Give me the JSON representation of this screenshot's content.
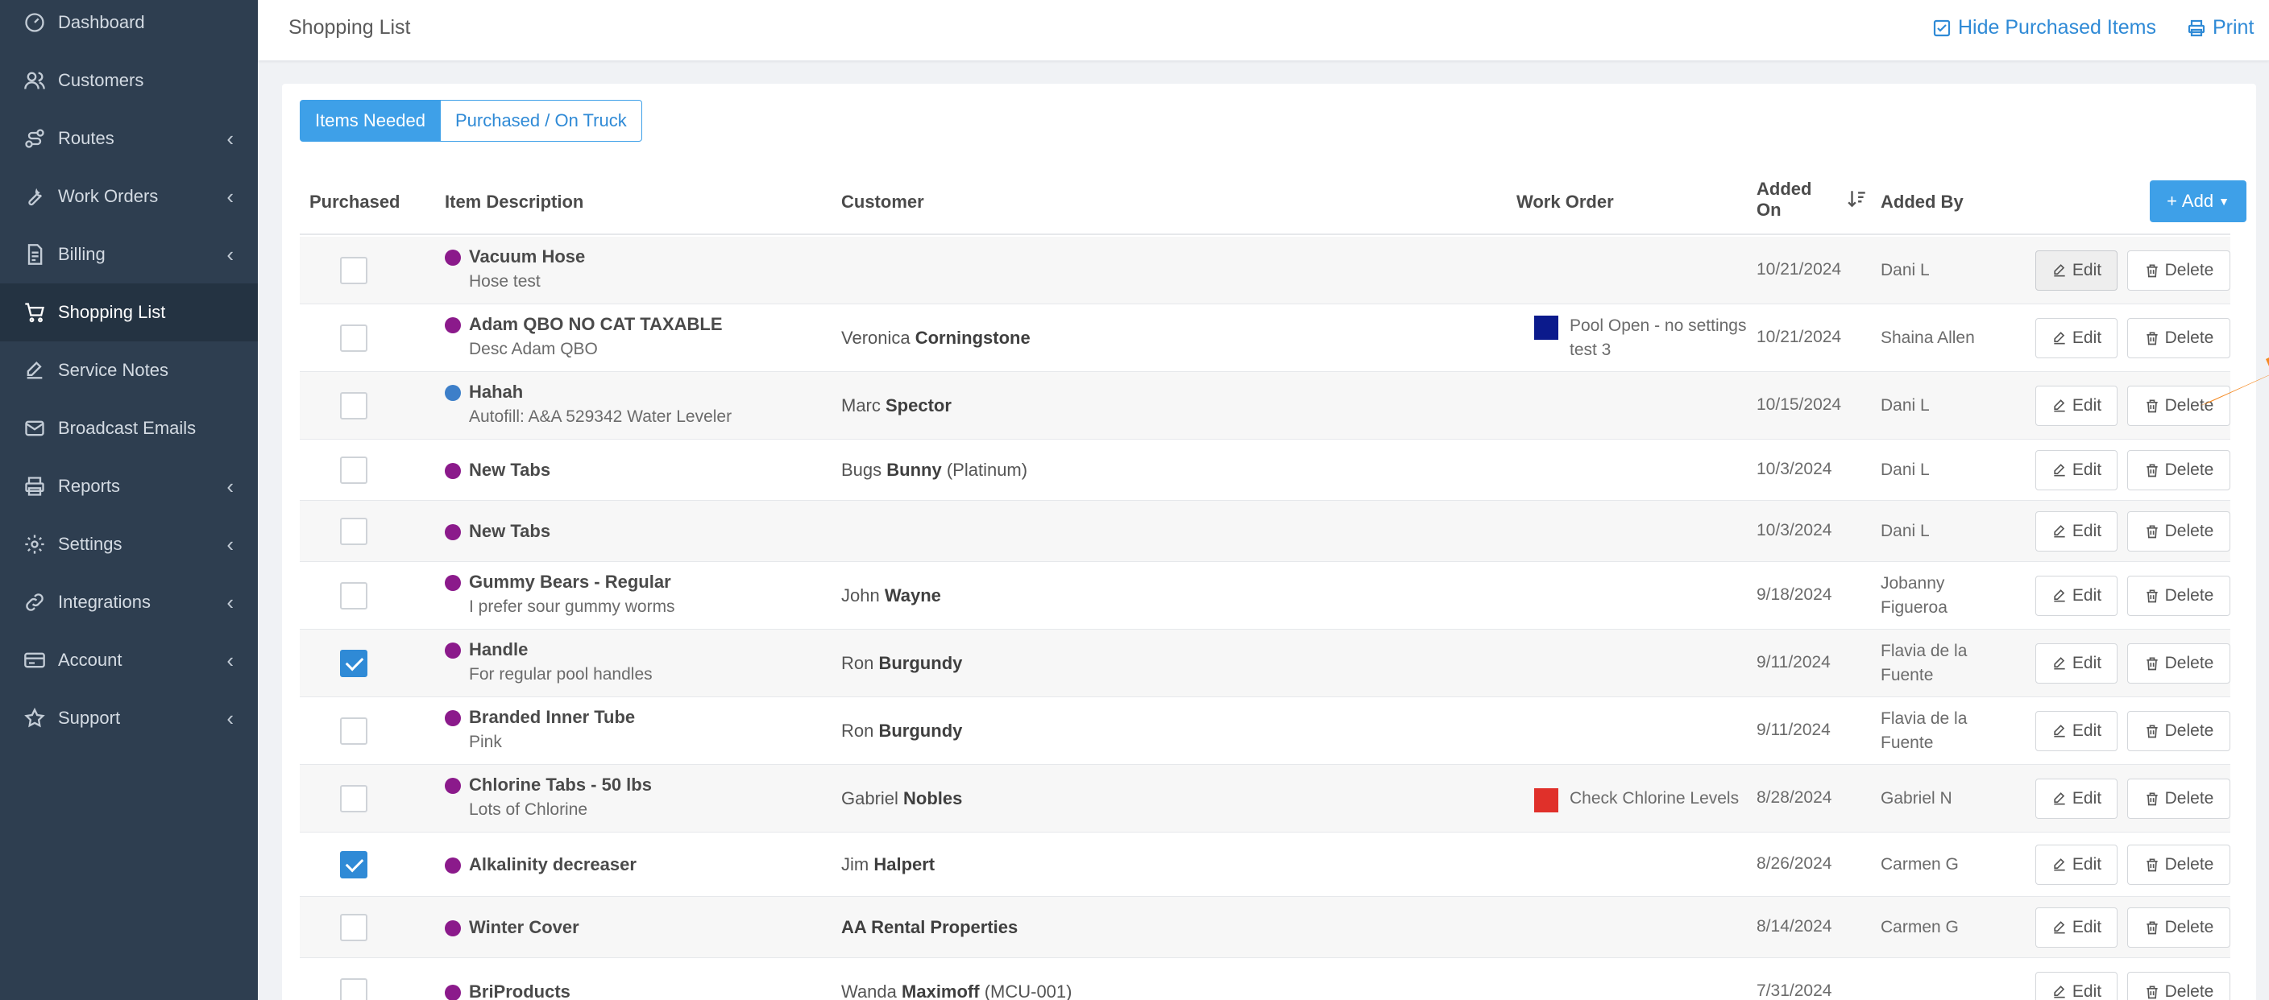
{
  "sidebar": {
    "items": [
      {
        "label": "Dashboard",
        "icon": "dashboard-icon",
        "chevron": false,
        "active": false
      },
      {
        "label": "Customers",
        "icon": "users-icon",
        "chevron": false,
        "active": false
      },
      {
        "label": "Routes",
        "icon": "route-icon",
        "chevron": true,
        "active": false
      },
      {
        "label": "Work Orders",
        "icon": "wrench-icon",
        "chevron": true,
        "active": false
      },
      {
        "label": "Billing",
        "icon": "invoice-icon",
        "chevron": true,
        "active": false
      },
      {
        "label": "Shopping List",
        "icon": "cart-icon",
        "chevron": false,
        "active": true
      },
      {
        "label": "Service Notes",
        "icon": "edit-icon",
        "chevron": false,
        "active": false
      },
      {
        "label": "Broadcast Emails",
        "icon": "envelope-icon",
        "chevron": false,
        "active": false
      },
      {
        "label": "Reports",
        "icon": "printer-icon",
        "chevron": true,
        "active": false
      },
      {
        "label": "Settings",
        "icon": "gear-icon",
        "chevron": true,
        "active": false
      },
      {
        "label": "Integrations",
        "icon": "link-icon",
        "chevron": true,
        "active": false
      },
      {
        "label": "Account",
        "icon": "card-icon",
        "chevron": true,
        "active": false
      },
      {
        "label": "Support",
        "icon": "star-icon",
        "chevron": true,
        "active": false
      }
    ],
    "chevron_glyph": "‹"
  },
  "header": {
    "title": "Shopping List",
    "hide_purchased": "Hide Purchased Items",
    "print": "Print"
  },
  "tabs": {
    "needed": "Items Needed",
    "purchased": "Purchased / On Truck"
  },
  "table": {
    "headers": {
      "purchased": "Purchased",
      "item": "Item Description",
      "customer": "Customer",
      "work_order": "Work Order",
      "added_on_1": "Added",
      "added_on_2": "On",
      "added_by": "Added By"
    },
    "add_label": "Add",
    "edit_label": "Edit",
    "delete_label": "Delete",
    "rows": [
      {
        "checked": false,
        "dot": "#8b1a8b",
        "name": "Vacuum Hose",
        "desc": "Hose test",
        "cust_first": "",
        "cust_last": "",
        "cust_extra": "",
        "wo_color": "",
        "wo_line1": "",
        "wo_line2": "",
        "date": "10/21/2024",
        "by1": "Dani L",
        "by2": ""
      },
      {
        "checked": false,
        "dot": "#8b1a8b",
        "name": "Adam QBO NO CAT TAXABLE",
        "desc": "Desc Adam QBO",
        "cust_first": "Veronica ",
        "cust_last": "Corningstone",
        "cust_extra": "",
        "wo_color": "#0b1a8c",
        "wo_line1": "Pool Open - no settings",
        "wo_line2": "test 3",
        "date": "10/21/2024",
        "by1": "Shaina Allen",
        "by2": ""
      },
      {
        "checked": false,
        "dot": "#3d7fc9",
        "name": "Hahah",
        "desc": "Autofill: A&A 529342 Water Leveler",
        "cust_first": "Marc ",
        "cust_last": "Spector",
        "cust_extra": "",
        "wo_color": "",
        "wo_line1": "",
        "wo_line2": "",
        "date": "10/15/2024",
        "by1": "Dani L",
        "by2": ""
      },
      {
        "checked": false,
        "dot": "#8b1a8b",
        "name": "New Tabs",
        "desc": "",
        "cust_first": "Bugs ",
        "cust_last": "Bunny",
        "cust_extra": " (Platinum)",
        "wo_color": "",
        "wo_line1": "",
        "wo_line2": "",
        "date": "10/3/2024",
        "by1": "Dani L",
        "by2": ""
      },
      {
        "checked": false,
        "dot": "#8b1a8b",
        "name": "New Tabs",
        "desc": "",
        "cust_first": "",
        "cust_last": "",
        "cust_extra": "",
        "wo_color": "",
        "wo_line1": "",
        "wo_line2": "",
        "date": "10/3/2024",
        "by1": "Dani L",
        "by2": ""
      },
      {
        "checked": false,
        "dot": "#8b1a8b",
        "name": "Gummy Bears - Regular",
        "desc": "I prefer sour gummy worms",
        "cust_first": "John ",
        "cust_last": "Wayne",
        "cust_extra": "",
        "wo_color": "",
        "wo_line1": "",
        "wo_line2": "",
        "date": "9/18/2024",
        "by1": "Jobanny",
        "by2": "Figueroa"
      },
      {
        "checked": true,
        "dot": "#8b1a8b",
        "name": "Handle",
        "desc": "For regular pool handles",
        "cust_first": "Ron ",
        "cust_last": "Burgundy",
        "cust_extra": "",
        "wo_color": "",
        "wo_line1": "",
        "wo_line2": "",
        "date": "9/11/2024",
        "by1": "Flavia de la",
        "by2": "Fuente"
      },
      {
        "checked": false,
        "dot": "#8b1a8b",
        "name": "Branded Inner Tube",
        "desc": "Pink",
        "cust_first": "Ron ",
        "cust_last": "Burgundy",
        "cust_extra": "",
        "wo_color": "",
        "wo_line1": "",
        "wo_line2": "",
        "date": "9/11/2024",
        "by1": "Flavia de la",
        "by2": "Fuente"
      },
      {
        "checked": false,
        "dot": "#8b1a8b",
        "name": "Chlorine Tabs - 50 lbs",
        "desc": "Lots of Chlorine",
        "cust_first": "Gabriel ",
        "cust_last": "Nobles",
        "cust_extra": "",
        "wo_color": "#e0302a",
        "wo_line1": "Check Chlorine Levels",
        "wo_line2": "",
        "date": "8/28/2024",
        "by1": "Gabriel N",
        "by2": ""
      },
      {
        "checked": true,
        "dot": "#8b1a8b",
        "name": "Alkalinity decreaser",
        "desc": "",
        "cust_first": "Jim ",
        "cust_last": "Halpert",
        "cust_extra": "",
        "wo_color": "",
        "wo_line1": "",
        "wo_line2": "",
        "date": "8/26/2024",
        "by1": "Carmen G",
        "by2": ""
      },
      {
        "checked": false,
        "dot": "#8b1a8b",
        "name": "Winter Cover",
        "desc": "",
        "cust_first": "",
        "cust_last": "AA Rental Properties",
        "cust_extra": "",
        "wo_color": "",
        "wo_line1": "",
        "wo_line2": "",
        "date": "8/14/2024",
        "by1": "Carmen G",
        "by2": ""
      },
      {
        "checked": false,
        "dot": "#8b1a8b",
        "name": "BriProducts",
        "desc": "",
        "cust_first": "Wanda ",
        "cust_last": "Maximoff",
        "cust_extra": " (MCU-001)",
        "wo_color": "",
        "wo_line1": "",
        "wo_line2": "",
        "date": "7/31/2024",
        "by1": "",
        "by2": ""
      }
    ]
  },
  "colors": {
    "sidebar_bg": "#2e3e50",
    "accent": "#3ea0e8",
    "arrow": "#f58a23"
  }
}
